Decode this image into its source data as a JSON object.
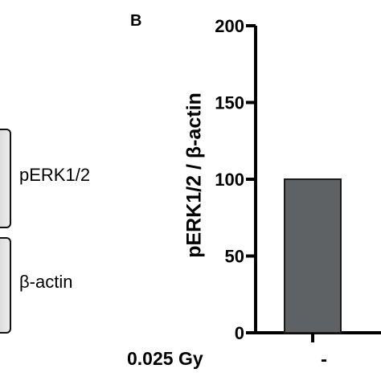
{
  "panel_letter": "B",
  "blot": {
    "label_1": "pERK1/2",
    "label_2": "β-actin"
  },
  "treatment": {
    "label": "0.025 Gy",
    "value": "-"
  },
  "chart_data": {
    "type": "bar",
    "categories": [
      "-"
    ],
    "values": [
      100
    ],
    "title": "",
    "xlabel": "",
    "ylabel": "pERK1/2 / β-actin",
    "ylim": [
      0,
      200
    ],
    "yticks": [
      0,
      50,
      100,
      150,
      200
    ],
    "grid": false,
    "colors": {
      "bar": "#5f6264",
      "bar_edge": "#1a1a1a",
      "axis": "#000000"
    }
  }
}
